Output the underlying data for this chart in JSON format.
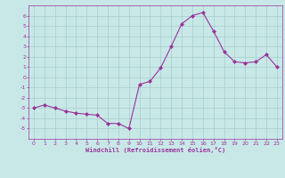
{
  "x": [
    0,
    1,
    2,
    3,
    4,
    5,
    6,
    7,
    8,
    9,
    10,
    11,
    12,
    13,
    14,
    15,
    16,
    17,
    18,
    19,
    20,
    21,
    22,
    23
  ],
  "y": [
    -3.0,
    -2.7,
    -3.0,
    -3.3,
    -3.5,
    -3.6,
    -3.7,
    -4.5,
    -4.5,
    -5.0,
    -0.7,
    -0.4,
    0.9,
    3.0,
    5.2,
    6.0,
    6.3,
    4.5,
    2.5,
    1.5,
    1.4,
    1.5,
    2.2,
    1.0
  ],
  "line_color": "#993399",
  "marker": "D",
  "marker_size": 2,
  "bg_color": "#c8e8e8",
  "grid_color": "#aacccc",
  "xlabel": "Windchill (Refroidissement éolien,°C)",
  "ylim": [
    -6,
    7
  ],
  "xlim": [
    -0.5,
    23.5
  ],
  "yticks": [
    -5,
    -4,
    -3,
    -2,
    -1,
    0,
    1,
    2,
    3,
    4,
    5,
    6
  ],
  "xticks": [
    0,
    1,
    2,
    3,
    4,
    5,
    6,
    7,
    8,
    9,
    10,
    11,
    12,
    13,
    14,
    15,
    16,
    17,
    18,
    19,
    20,
    21,
    22,
    23
  ],
  "tick_color": "#993399",
  "label_color": "#993399",
  "axis_color": "#993399",
  "tick_fontsize": 4.5,
  "xlabel_fontsize": 5.0
}
